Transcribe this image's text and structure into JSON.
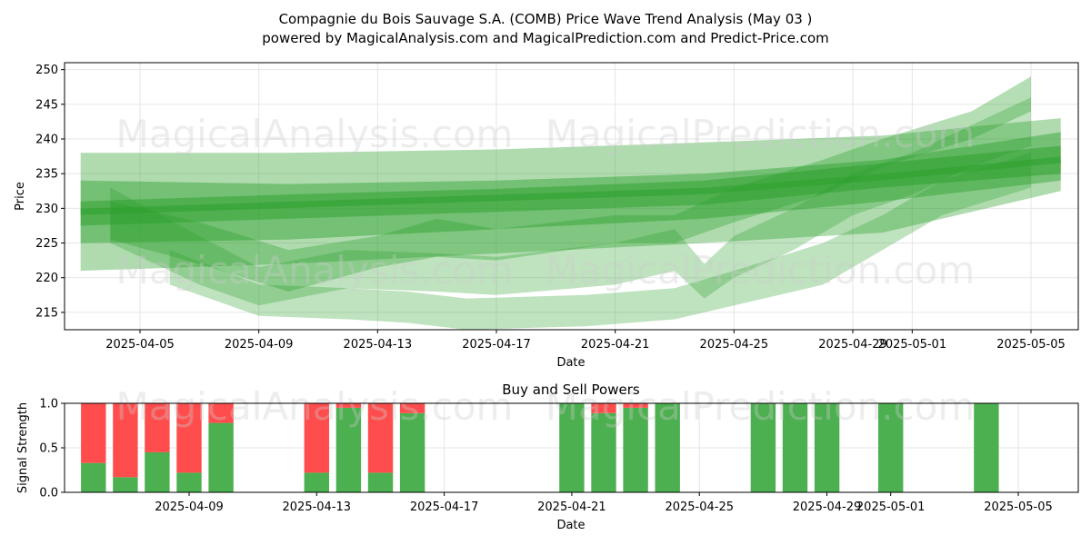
{
  "title_line1": "Compagnie du Bois Sauvage S.A. (COMB) Price Wave Trend Analysis (May 03 )",
  "title_line2": "powered by MagicalAnalysis.com and MagicalPrediction.com and Predict-Price.com",
  "watermarks": [
    "MagicalAnalysis.com",
    "MagicalPrediction.com"
  ],
  "colors": {
    "band": "#2ca02c",
    "buy": "#4caf50",
    "sell": "#ff4c4c",
    "grid": "#e6e6e6"
  },
  "price_chart": {
    "type": "area",
    "ylabel": "Price",
    "xlabel": "Date",
    "ylim": [
      212.5,
      251
    ],
    "yticks": [
      215,
      220,
      225,
      230,
      235,
      240,
      245,
      250
    ],
    "xticks": [
      "2025-04-05",
      "2025-04-09",
      "2025-04-13",
      "2025-04-17",
      "2025-04-21",
      "2025-04-25",
      "2025-04-29",
      "2025-05-01",
      "2025-05-05"
    ],
    "grid": true,
    "bands": [
      {
        "x": [
          "2025-04-03",
          "2025-04-10",
          "2025-04-17",
          "2025-04-24",
          "2025-04-30",
          "2025-05-06"
        ],
        "lower": [
          221,
          222,
          223.5,
          225,
          226.5,
          232.5
        ],
        "upper": [
          238,
          238,
          238.5,
          239.5,
          240.5,
          243
        ]
      },
      {
        "x": [
          "2025-04-03",
          "2025-04-10",
          "2025-04-17",
          "2025-04-24",
          "2025-04-30",
          "2025-05-06"
        ],
        "lower": [
          225,
          225.5,
          227,
          228.5,
          231,
          234
        ],
        "upper": [
          234,
          233.5,
          234,
          235,
          237,
          241
        ]
      },
      {
        "x": [
          "2025-04-03",
          "2025-04-10",
          "2025-04-17",
          "2025-04-24",
          "2025-04-30",
          "2025-05-06"
        ],
        "lower": [
          227.5,
          228.5,
          229.5,
          230.5,
          233,
          235
        ],
        "upper": [
          231,
          232,
          232.8,
          234,
          236.5,
          239
        ]
      },
      {
        "x": [
          "2025-04-04",
          "2025-04-07",
          "2025-04-10",
          "2025-04-13",
          "2025-04-15",
          "2025-04-17",
          "2025-04-21",
          "2025-04-23",
          "2025-04-25",
          "2025-04-28",
          "2025-04-30",
          "2025-05-03",
          "2025-05-05"
        ],
        "lower": [
          225.5,
          222,
          218,
          221.5,
          223,
          222.5,
          225,
          225,
          228,
          232,
          236,
          240,
          244
        ],
        "upper": [
          231,
          228,
          224,
          226,
          228.5,
          227,
          229,
          229,
          233,
          237,
          240,
          244,
          249
        ]
      },
      {
        "x": [
          "2025-04-04",
          "2025-04-07",
          "2025-04-09",
          "2025-04-12",
          "2025-04-15",
          "2025-04-17",
          "2025-04-21",
          "2025-04-23",
          "2025-04-24",
          "2025-04-25",
          "2025-04-27",
          "2025-04-29",
          "2025-05-01",
          "2025-05-03",
          "2025-05-05"
        ],
        "lower": [
          225,
          219,
          216,
          218.5,
          218,
          217.5,
          219,
          221,
          217,
          220,
          224,
          229,
          232,
          236,
          239
        ],
        "upper": [
          233,
          226,
          221.5,
          224,
          223.5,
          223,
          225,
          227,
          222,
          226,
          230,
          235,
          238,
          242,
          246
        ]
      },
      {
        "x": [
          "2025-04-06",
          "2025-04-09",
          "2025-04-12",
          "2025-04-14",
          "2025-04-16",
          "2025-04-20",
          "2025-04-23",
          "2025-04-25",
          "2025-04-28",
          "2025-04-30",
          "2025-05-02",
          "2025-05-05"
        ],
        "lower": [
          219,
          214.5,
          214,
          213.5,
          212.5,
          213,
          214,
          216,
          219,
          224,
          229,
          233
        ],
        "upper": [
          224,
          219,
          218.5,
          218,
          217,
          217.5,
          218.5,
          221,
          225,
          229,
          234,
          238
        ]
      }
    ],
    "center_line": {
      "x": [
        "2025-04-03",
        "2025-04-10",
        "2025-04-17",
        "2025-04-24",
        "2025-04-30",
        "2025-05-06"
      ],
      "y": [
        229.5,
        230.5,
        231.5,
        232.5,
        234.5,
        237
      ]
    }
  },
  "signal_chart": {
    "type": "bar",
    "title": "Buy and Sell Powers",
    "ylabel": "Signal Strength",
    "xlabel": "Date",
    "ylim": [
      0,
      1
    ],
    "yticks": [
      "0.0",
      "0.5",
      "1.0"
    ],
    "xticks": [
      "2025-04-09",
      "2025-04-13",
      "2025-04-17",
      "2025-04-21",
      "2025-04-25",
      "2025-04-29",
      "2025-05-01",
      "2025-05-05"
    ],
    "grid": true,
    "bars": [
      {
        "date": "2025-04-06",
        "buy": 0.33,
        "sell": 0.67
      },
      {
        "date": "2025-04-07",
        "buy": 0.17,
        "sell": 0.83
      },
      {
        "date": "2025-04-08",
        "buy": 0.45,
        "sell": 0.55
      },
      {
        "date": "2025-04-09",
        "buy": 0.22,
        "sell": 0.78
      },
      {
        "date": "2025-04-10",
        "buy": 0.78,
        "sell": 0.22
      },
      {
        "date": "2025-04-13",
        "buy": 0.22,
        "sell": 0.78
      },
      {
        "date": "2025-04-14",
        "buy": 0.95,
        "sell": 0.05
      },
      {
        "date": "2025-04-15",
        "buy": 0.22,
        "sell": 0.78
      },
      {
        "date": "2025-04-16",
        "buy": 0.89,
        "sell": 0.11
      },
      {
        "date": "2025-04-21",
        "buy": 1.0,
        "sell": 0.0
      },
      {
        "date": "2025-04-22",
        "buy": 0.89,
        "sell": 0.11
      },
      {
        "date": "2025-04-23",
        "buy": 0.95,
        "sell": 0.05
      },
      {
        "date": "2025-04-24",
        "buy": 1.0,
        "sell": 0.0
      },
      {
        "date": "2025-04-27",
        "buy": 1.0,
        "sell": 0.0
      },
      {
        "date": "2025-04-28",
        "buy": 1.0,
        "sell": 0.0
      },
      {
        "date": "2025-04-29",
        "buy": 1.0,
        "sell": 0.0
      },
      {
        "date": "2025-05-01",
        "buy": 1.0,
        "sell": 0.0
      },
      {
        "date": "2025-05-04",
        "buy": 1.0,
        "sell": 0.0
      }
    ]
  }
}
